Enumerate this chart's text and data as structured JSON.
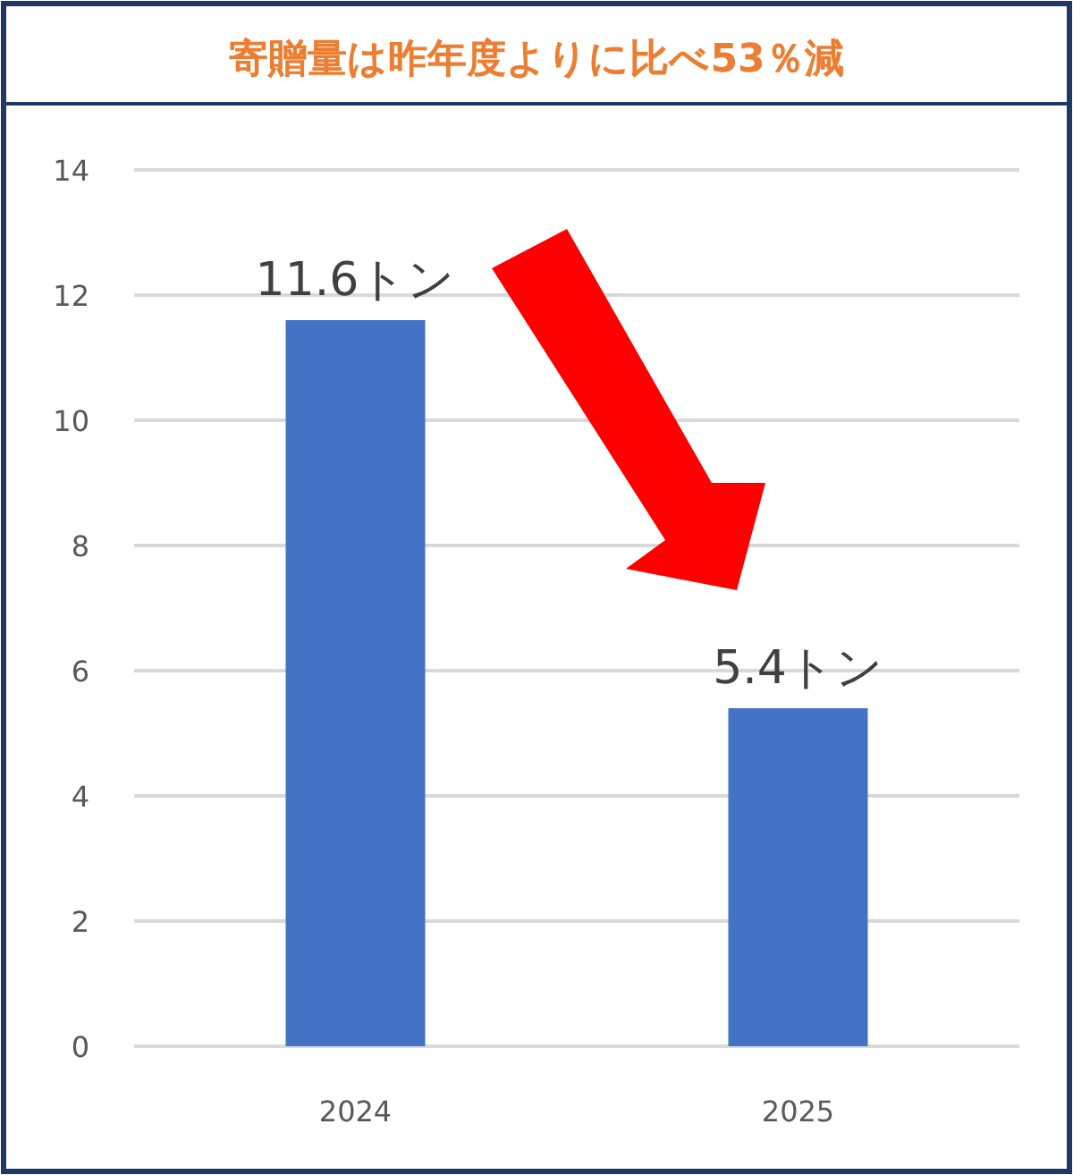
{
  "chart_data": {
    "type": "bar",
    "title": "寄贈量は昨年度よりに比べ53％減",
    "categories": [
      "2024",
      "2025"
    ],
    "values": [
      11.6,
      5.4
    ],
    "value_labels": [
      "11.6トン",
      "5.4トン"
    ],
    "color": "#4472c4",
    "ylim": [
      0,
      14
    ],
    "yticks": [
      0,
      2,
      4,
      6,
      8,
      10,
      12,
      14
    ],
    "grid": "y"
  }
}
